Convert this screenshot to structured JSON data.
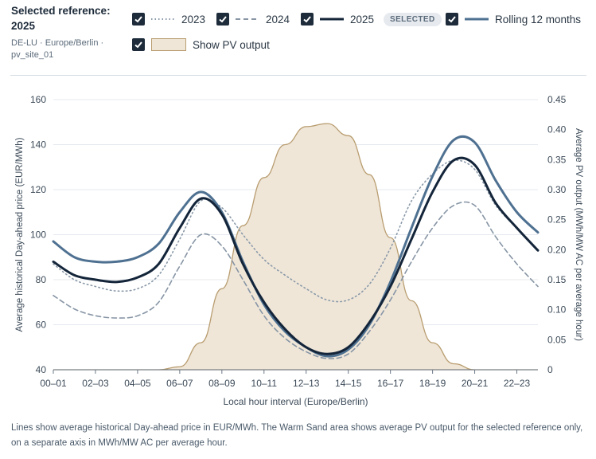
{
  "header": {
    "title": "Selected reference:\n2025",
    "subtitle": "DE-LU · Europe/Berlin · pv_site_01"
  },
  "legend": [
    {
      "label": "2023",
      "checked": true
    },
    {
      "label": "2024",
      "checked": true
    },
    {
      "label": "2025",
      "checked": true,
      "badge": "SELECTED"
    },
    {
      "label": "Rolling 12 months",
      "checked": true
    },
    {
      "label": "Show PV output",
      "checked": true
    }
  ],
  "colors": {
    "y2023": "#8a99a8",
    "y2024": "#8795a5",
    "y2025": "#14253a",
    "rolling": "#4f7191",
    "pv_fill": "#efe6d8",
    "pv_line": "#b99d70",
    "grid": "#e5e9ee"
  },
  "chart_data": {
    "type": "line",
    "xlabel": "Local hour interval (Europe/Berlin)",
    "ylabel": "Average historical Day-ahead price (EUR/MWh)",
    "y2label": "Average PV output (MWh/MW AC per average hour)",
    "ylim": [
      40,
      160
    ],
    "y2lim": [
      0,
      0.45
    ],
    "yticks": [
      "40",
      "60",
      "80",
      "100",
      "120",
      "140",
      "160"
    ],
    "y2ticks": [
      "0",
      "0.05",
      "0.10",
      "0.15",
      "0.20",
      "0.25",
      "0.30",
      "0.35",
      "0.40",
      "0.45"
    ],
    "x": [
      "00–01",
      "01–02",
      "02–03",
      "03–04",
      "04–05",
      "05–06",
      "06–07",
      "07–08",
      "08–09",
      "09–10",
      "10–11",
      "11–12",
      "12–13",
      "13–14",
      "14–15",
      "15–16",
      "16–17",
      "17–18",
      "18–19",
      "19–20",
      "20–21",
      "21–22",
      "22–23",
      "23–24"
    ],
    "xticks": [
      "00–01",
      "02–03",
      "04–05",
      "06–07",
      "08–09",
      "10–11",
      "12–13",
      "14–15",
      "16–17",
      "18–19",
      "20–21",
      "22–23"
    ],
    "series": [
      {
        "name": "2023",
        "style": "dotted",
        "values": [
          87,
          80,
          77,
          75,
          76,
          82,
          98,
          115,
          112,
          100,
          89,
          82,
          76,
          71,
          71,
          78,
          94,
          115,
          127,
          133,
          129,
          113,
          103,
          93
        ]
      },
      {
        "name": "2024",
        "style": "dashed",
        "values": [
          73,
          67,
          64,
          63,
          64,
          70,
          86,
          100,
          95,
          80,
          64,
          54,
          48,
          45,
          47,
          57,
          71,
          88,
          103,
          113,
          113,
          99,
          87,
          77
        ]
      },
      {
        "name": "2025",
        "style": "solid",
        "values": [
          88,
          82,
          80,
          79,
          81,
          87,
          103,
          116,
          109,
          87,
          70,
          58,
          50,
          47,
          50,
          61,
          77,
          98,
          119,
          133,
          131,
          114,
          103,
          93
        ]
      },
      {
        "name": "Rolling 12 months",
        "style": "solid",
        "values": [
          97,
          90,
          88,
          88,
          90,
          96,
          110,
          119,
          110,
          88,
          69,
          57,
          50,
          46,
          49,
          60,
          79,
          103,
          126,
          142,
          141,
          124,
          110,
          101
        ]
      }
    ],
    "pv": {
      "name": "Show PV output",
      "values": [
        0,
        0,
        0,
        0,
        0,
        0,
        0.005,
        0.045,
        0.135,
        0.24,
        0.32,
        0.375,
        0.405,
        0.41,
        0.39,
        0.325,
        0.22,
        0.115,
        0.045,
        0.01,
        0,
        0,
        0,
        0
      ]
    }
  },
  "caption": "Lines show average historical Day-ahead price in EUR/MWh. The Warm Sand area shows average PV output for the selected reference only, on a separate axis in MWh/MW AC per average hour."
}
